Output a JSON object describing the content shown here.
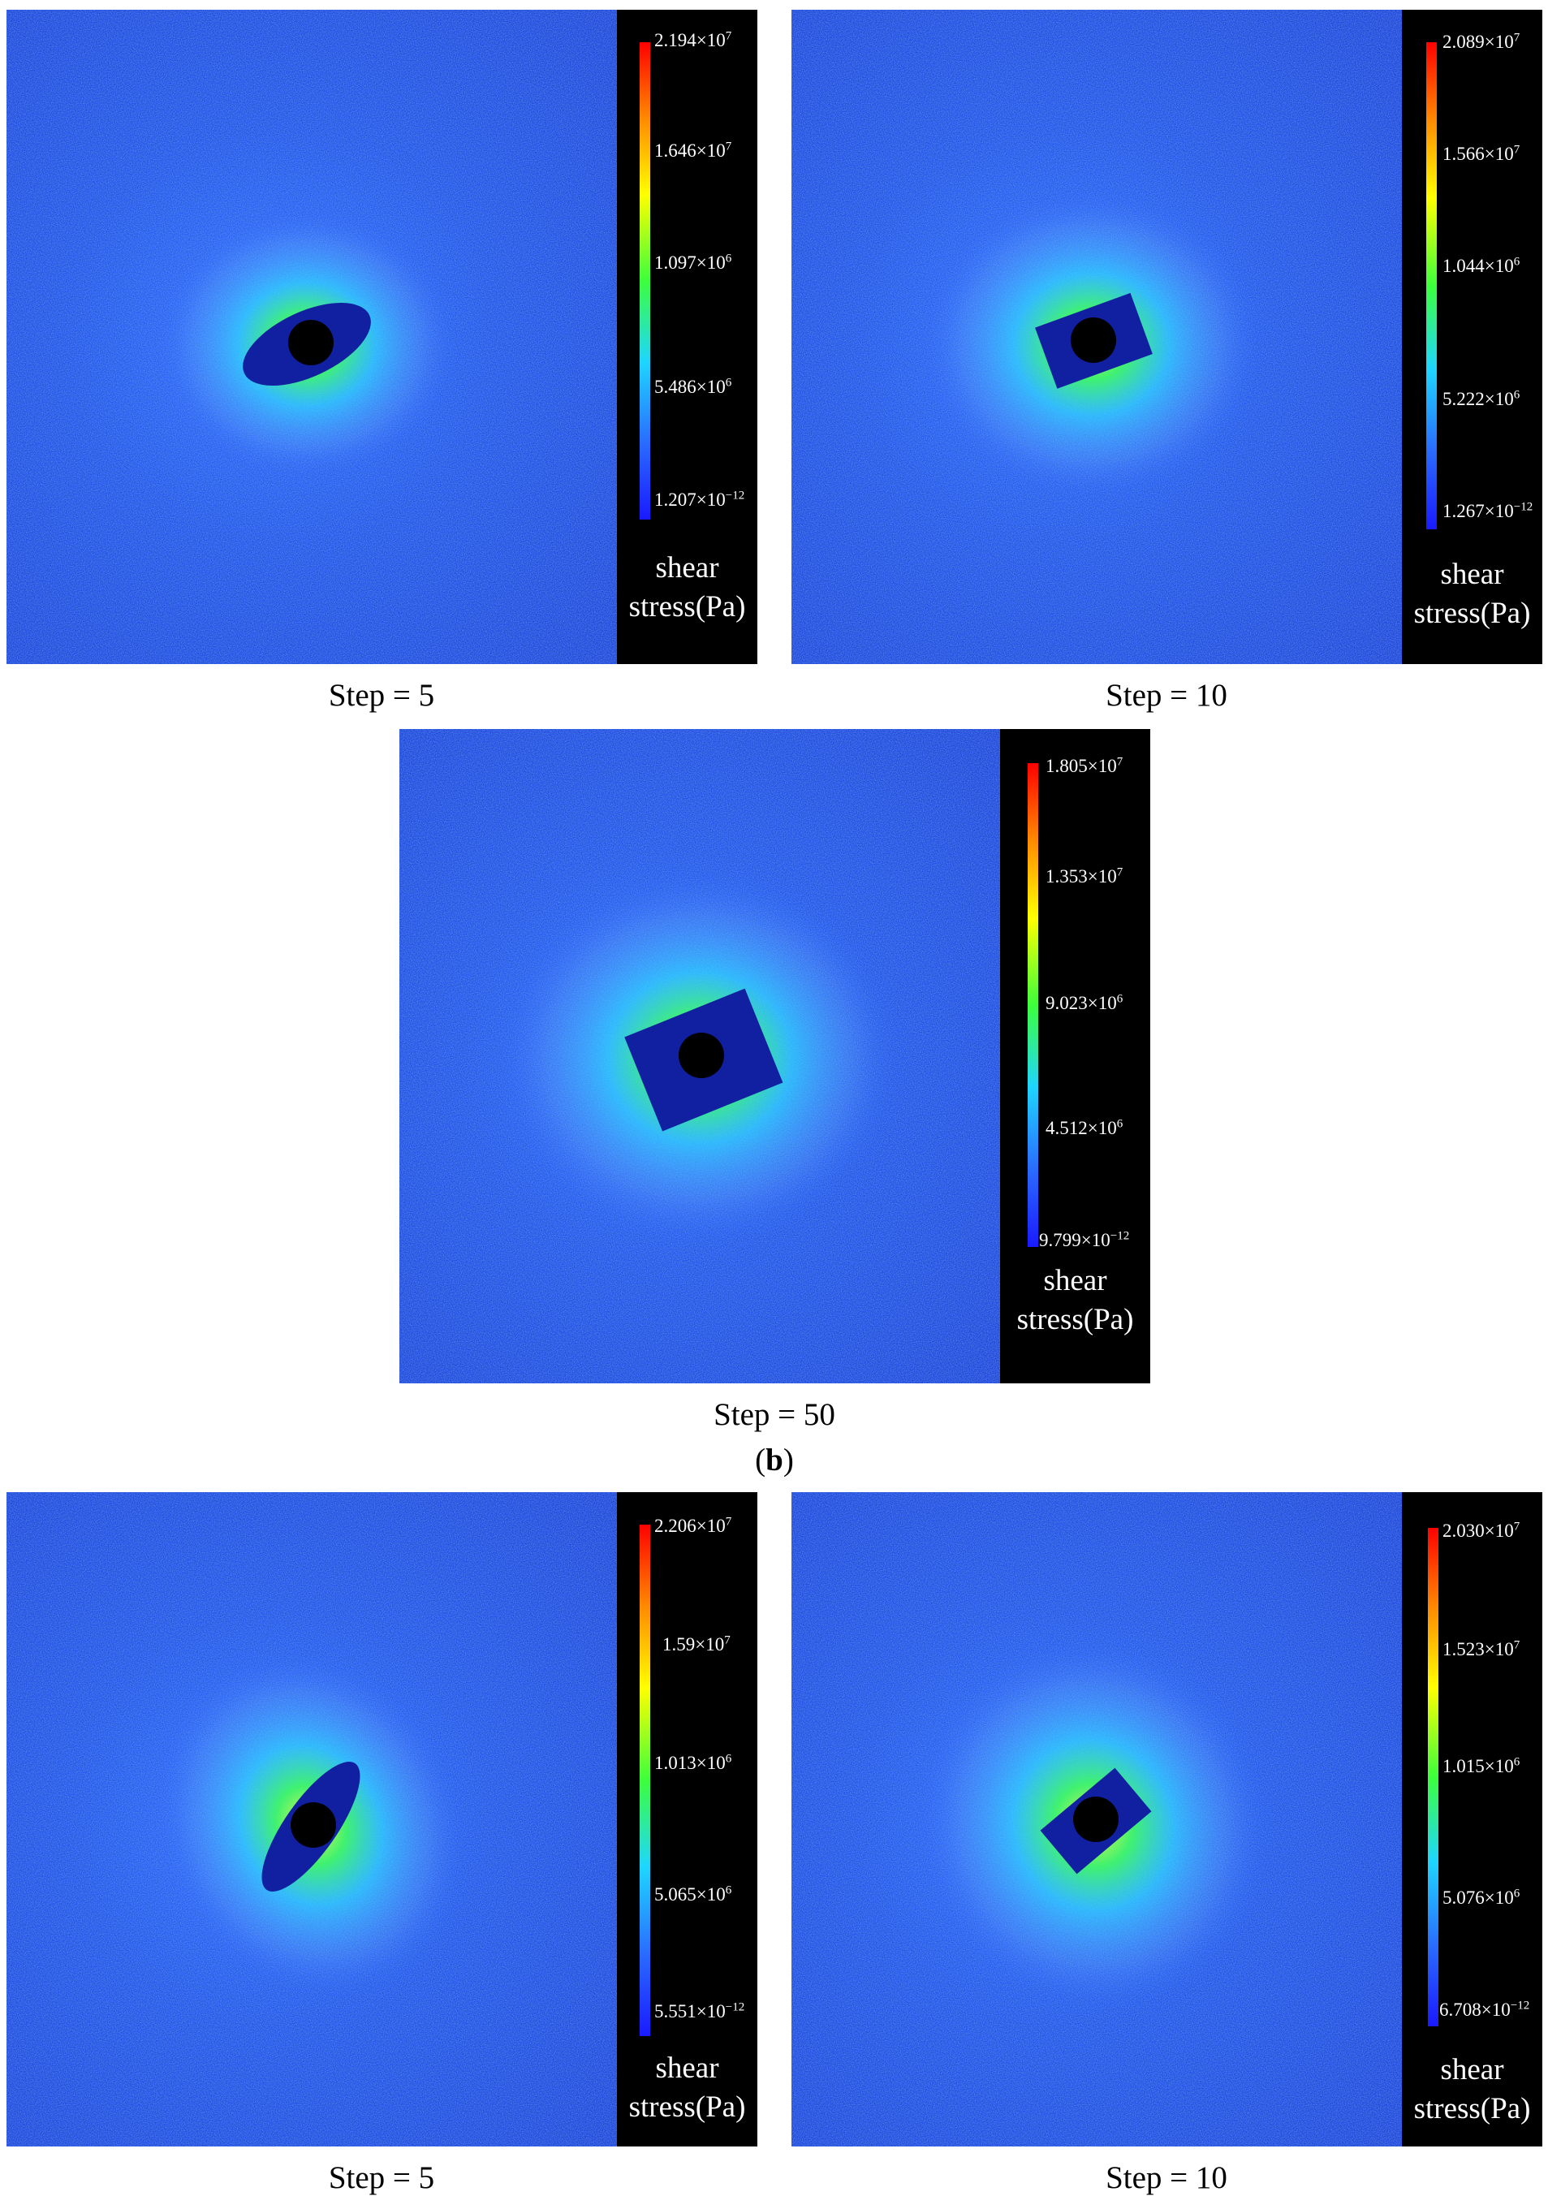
{
  "panels": [
    {
      "caption": "Step = 5",
      "legend_title_1": "shear",
      "legend_title_2": "stress(Pa)",
      "ticks": [
        {
          "m": "2.194×10",
          "e": "7"
        },
        {
          "m": "1.646×10",
          "e": "7"
        },
        {
          "m": "1.097×10",
          "e": "6"
        },
        {
          "m": "5.486×10",
          "e": "6"
        },
        {
          "m": "1.207×10",
          "e": "−12"
        }
      ]
    },
    {
      "caption": "Step = 10",
      "legend_title_1": "shear",
      "legend_title_2": "stress(Pa)",
      "ticks": [
        {
          "m": "2.089×10",
          "e": "7"
        },
        {
          "m": "1.566×10",
          "e": "7"
        },
        {
          "m": "1.044×10",
          "e": "6"
        },
        {
          "m": "5.222×10",
          "e": "6"
        },
        {
          "m": "1.267×10",
          "e": "−12"
        }
      ]
    },
    {
      "caption": "Step = 50",
      "legend_title_1": "shear",
      "legend_title_2": "stress(Pa)",
      "ticks": [
        {
          "m": "1.805×10",
          "e": "7"
        },
        {
          "m": "1.353×10",
          "e": "7"
        },
        {
          "m": "9.023×10",
          "e": "6"
        },
        {
          "m": "4.512×10",
          "e": "6"
        },
        {
          "m": "9.799×10",
          "e": "−12"
        }
      ]
    },
    {
      "caption": "Step = 5",
      "legend_title_1": "shear",
      "legend_title_2": "stress(Pa)",
      "ticks": [
        {
          "m": "2.206×10",
          "e": "7"
        },
        {
          "m": "1.59×10",
          "e": "7"
        },
        {
          "m": "1.013×10",
          "e": "6"
        },
        {
          "m": "5.065×10",
          "e": "6"
        },
        {
          "m": "5.551×10",
          "e": "−12"
        }
      ]
    },
    {
      "caption": "Step = 10",
      "legend_title_1": "shear",
      "legend_title_2": "stress(Pa)",
      "ticks": [
        {
          "m": "2.030×10",
          "e": "7"
        },
        {
          "m": "1.523×10",
          "e": "7"
        },
        {
          "m": "1.015×10",
          "e": "6"
        },
        {
          "m": "5.076×10",
          "e": "6"
        },
        {
          "m": "6.708×10",
          "e": "−12"
        }
      ]
    }
  ],
  "sublabel": {
    "open": "(",
    "letter": "b",
    "close": ")"
  }
}
